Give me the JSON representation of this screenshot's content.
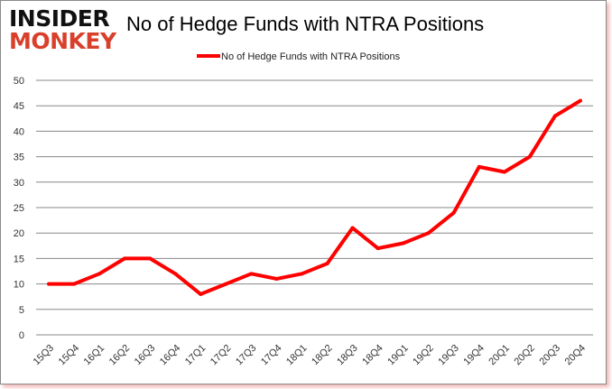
{
  "logo": {
    "line1": "INSIDER",
    "line2": "MONKEY"
  },
  "chart_data": {
    "type": "line",
    "title": "No of Hedge Funds with NTRA Positions",
    "xlabel": "",
    "ylabel": "",
    "categories": [
      "15Q3",
      "15Q4",
      "16Q1",
      "16Q2",
      "16Q3",
      "16Q4",
      "17Q1",
      "17Q2",
      "17Q3",
      "17Q4",
      "18Q1",
      "18Q2",
      "18Q3",
      "18Q4",
      "19Q1",
      "19Q2",
      "19Q3",
      "19Q4",
      "20Q1",
      "20Q2",
      "20Q3",
      "20Q4"
    ],
    "series": [
      {
        "name": "No of Hedge Funds with NTRA Positions",
        "color": "#ff0000",
        "values": [
          10,
          10,
          12,
          15,
          15,
          12,
          8,
          10,
          12,
          11,
          12,
          14,
          21,
          17,
          18,
          20,
          24,
          33,
          32,
          35,
          43,
          46
        ]
      }
    ],
    "ylim": [
      0,
      50
    ],
    "yticks": [
      0,
      5,
      10,
      15,
      20,
      25,
      30,
      35,
      40,
      45,
      50
    ],
    "grid": true,
    "legend_position": "top"
  }
}
